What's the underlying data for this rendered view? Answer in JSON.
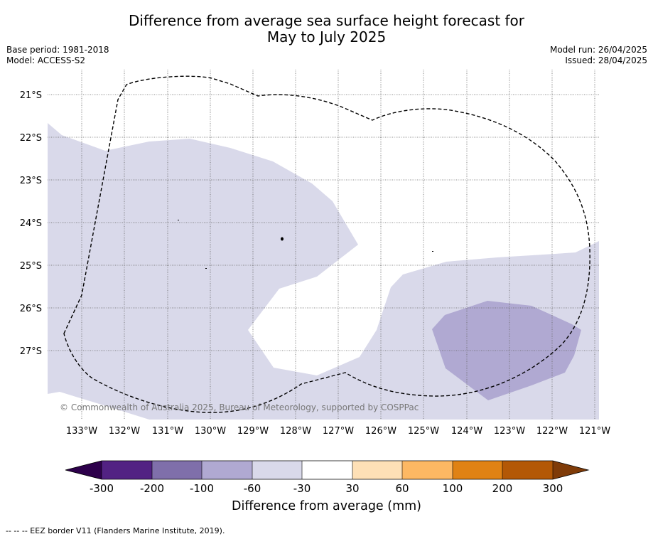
{
  "title": {
    "line1": "Difference from average sea surface height forecast for",
    "line2": "May to July 2025"
  },
  "meta": {
    "base_period": "Base period: 1981-2018",
    "model": "Model: ACCESS-S2",
    "model_run": "Model run: 26/04/2025",
    "issued": "Issued: 28/04/2025"
  },
  "map": {
    "lon_range": [
      -133.6,
      -120.9
    ],
    "lat_range": [
      -28.6,
      -20.6
    ],
    "lat_ticks": [
      {
        "value": -21,
        "label": "21°S"
      },
      {
        "value": -22,
        "label": "22°S"
      },
      {
        "value": -23,
        "label": "23°S"
      },
      {
        "value": -24,
        "label": "24°S"
      },
      {
        "value": -25,
        "label": "25°S"
      },
      {
        "value": -26,
        "label": "26°S"
      },
      {
        "value": -27,
        "label": "27°S"
      }
    ],
    "lon_ticks": [
      {
        "value": -133,
        "label": "133°W"
      },
      {
        "value": -132,
        "label": "132°W"
      },
      {
        "value": -131,
        "label": "131°W"
      },
      {
        "value": -130,
        "label": "130°W"
      },
      {
        "value": -129,
        "label": "129°W"
      },
      {
        "value": -128,
        "label": "128°W"
      },
      {
        "value": -127,
        "label": "127°W"
      },
      {
        "value": -126,
        "label": "126°W"
      },
      {
        "value": -125,
        "label": "125°W"
      },
      {
        "value": -124,
        "label": "124°W"
      },
      {
        "value": -123,
        "label": "123°W"
      },
      {
        "value": -122,
        "label": "122°W"
      },
      {
        "value": -121,
        "label": "121°W"
      }
    ],
    "copyright": "© Commonwealth of Australia 2025, Bureau of Meteorology, supported by COSPPac",
    "colors": {
      "class_-60_-30": "#d9d9ea",
      "class_-100_-60": "#b0a9d2",
      "eez_border": "#000000",
      "gridline": "#555555"
    }
  },
  "colorbar": {
    "label": "Difference from average (mm)",
    "tick_labels": [
      "-300",
      "-200",
      "-100",
      "-60",
      "-30",
      "30",
      "60",
      "100",
      "200",
      "300"
    ],
    "colors": [
      "#522283",
      "#7f6faa",
      "#b0a9d2",
      "#d9d9ea",
      "#ffffff",
      "#fee0b6",
      "#fdb863",
      "#e08214",
      "#b35806"
    ],
    "extend_low_color": "#2d004b",
    "extend_high_color": "#7f3b08"
  },
  "footnote": "--  --  -- EEZ border V11 (Flanders Marine Institute, 2019)."
}
